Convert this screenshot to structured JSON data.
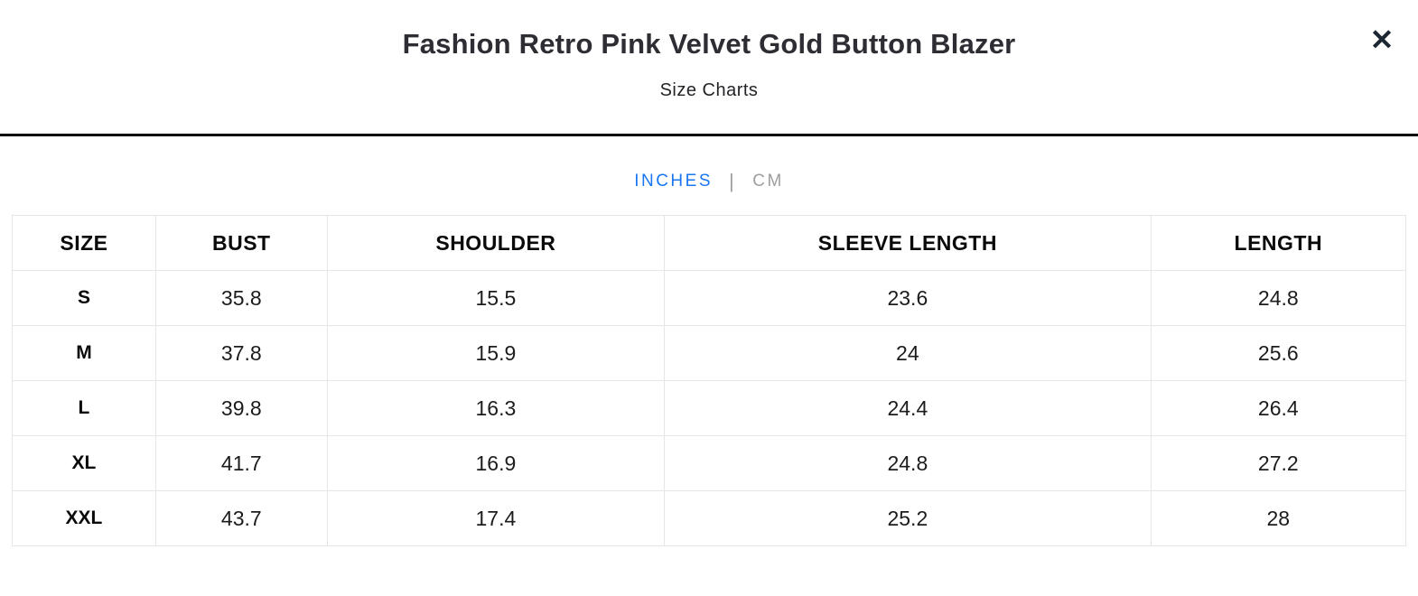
{
  "modal": {
    "title": "Fashion Retro Pink Velvet Gold Button Blazer",
    "subtitle": "Size Charts",
    "close_icon": "✕"
  },
  "unit_toggle": {
    "inches_label": "INCHES",
    "cm_label": "CM",
    "separator": "|",
    "selected_unit": "INCHES",
    "active_color": "#1b76f2",
    "inactive_color": "#9e9e9e"
  },
  "size_chart": {
    "columns": [
      "SIZE",
      "BUST",
      "SHOULDER",
      "SLEEVE LENGTH",
      "LENGTH"
    ],
    "rows": [
      {
        "size": "S",
        "values": [
          "35.8",
          "15.5",
          "23.6",
          "24.8"
        ]
      },
      {
        "size": "M",
        "values": [
          "37.8",
          "15.9",
          "24",
          "25.6"
        ]
      },
      {
        "size": "L",
        "values": [
          "39.8",
          "16.3",
          "24.4",
          "26.4"
        ]
      },
      {
        "size": "XL",
        "values": [
          "41.7",
          "16.9",
          "24.8",
          "27.2"
        ]
      },
      {
        "size": "XXL",
        "values": [
          "43.7",
          "17.4",
          "25.2",
          "28"
        ]
      }
    ]
  }
}
